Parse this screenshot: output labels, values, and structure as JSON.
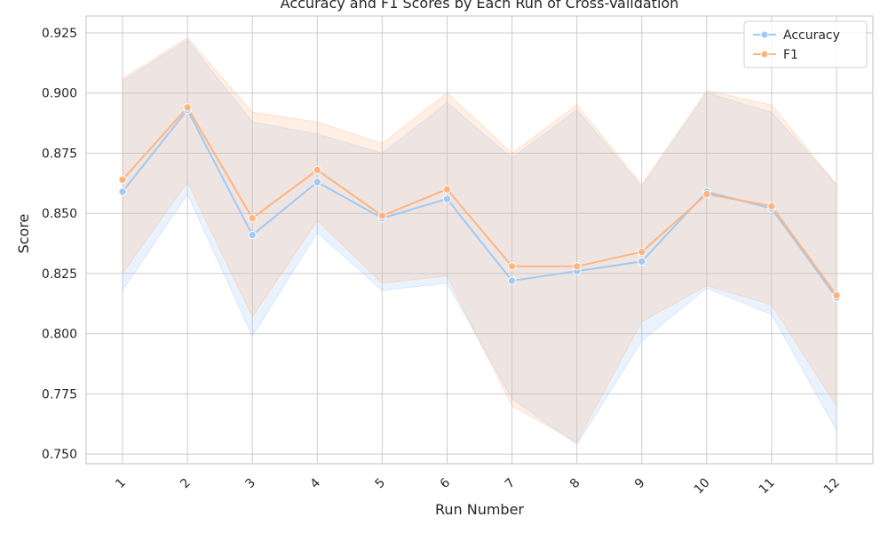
{
  "chart_data": {
    "type": "line",
    "title": "Accuracy and F1 Scores by Each Run of Cross-Validation",
    "xlabel": "Run Number",
    "ylabel": "Score",
    "categories": [
      "1",
      "2",
      "3",
      "4",
      "5",
      "6",
      "7",
      "8",
      "9",
      "10",
      "11",
      "12"
    ],
    "ylim": [
      0.746,
      0.932
    ],
    "yticks": [
      0.75,
      0.775,
      0.8,
      0.825,
      0.85,
      0.875,
      0.9,
      0.925
    ],
    "ytick_labels": [
      "0.750",
      "0.775",
      "0.800",
      "0.825",
      "0.850",
      "0.875",
      "0.900",
      "0.925"
    ],
    "grid": true,
    "legend_position": "top-right",
    "series": [
      {
        "name": "Accuracy",
        "color": "#a1c9f4",
        "values": [
          0.859,
          0.893,
          0.841,
          0.863,
          0.848,
          0.856,
          0.822,
          0.826,
          0.83,
          0.859,
          0.852,
          0.815
        ],
        "band_upper": [
          0.905,
          0.922,
          0.888,
          0.883,
          0.875,
          0.896,
          0.873,
          0.893,
          0.861,
          0.9,
          0.892,
          0.862
        ],
        "band_lower": [
          0.818,
          0.858,
          0.799,
          0.842,
          0.818,
          0.821,
          0.773,
          0.754,
          0.797,
          0.819,
          0.808,
          0.76
        ]
      },
      {
        "name": "F1",
        "color": "#ffb482",
        "values": [
          0.864,
          0.894,
          0.848,
          0.868,
          0.849,
          0.86,
          0.828,
          0.828,
          0.834,
          0.858,
          0.853,
          0.816
        ],
        "band_upper": [
          0.906,
          0.923,
          0.892,
          0.888,
          0.879,
          0.9,
          0.875,
          0.895,
          0.862,
          0.901,
          0.895,
          0.862
        ],
        "band_lower": [
          0.825,
          0.863,
          0.807,
          0.847,
          0.821,
          0.824,
          0.77,
          0.755,
          0.805,
          0.82,
          0.812,
          0.77
        ]
      }
    ]
  }
}
